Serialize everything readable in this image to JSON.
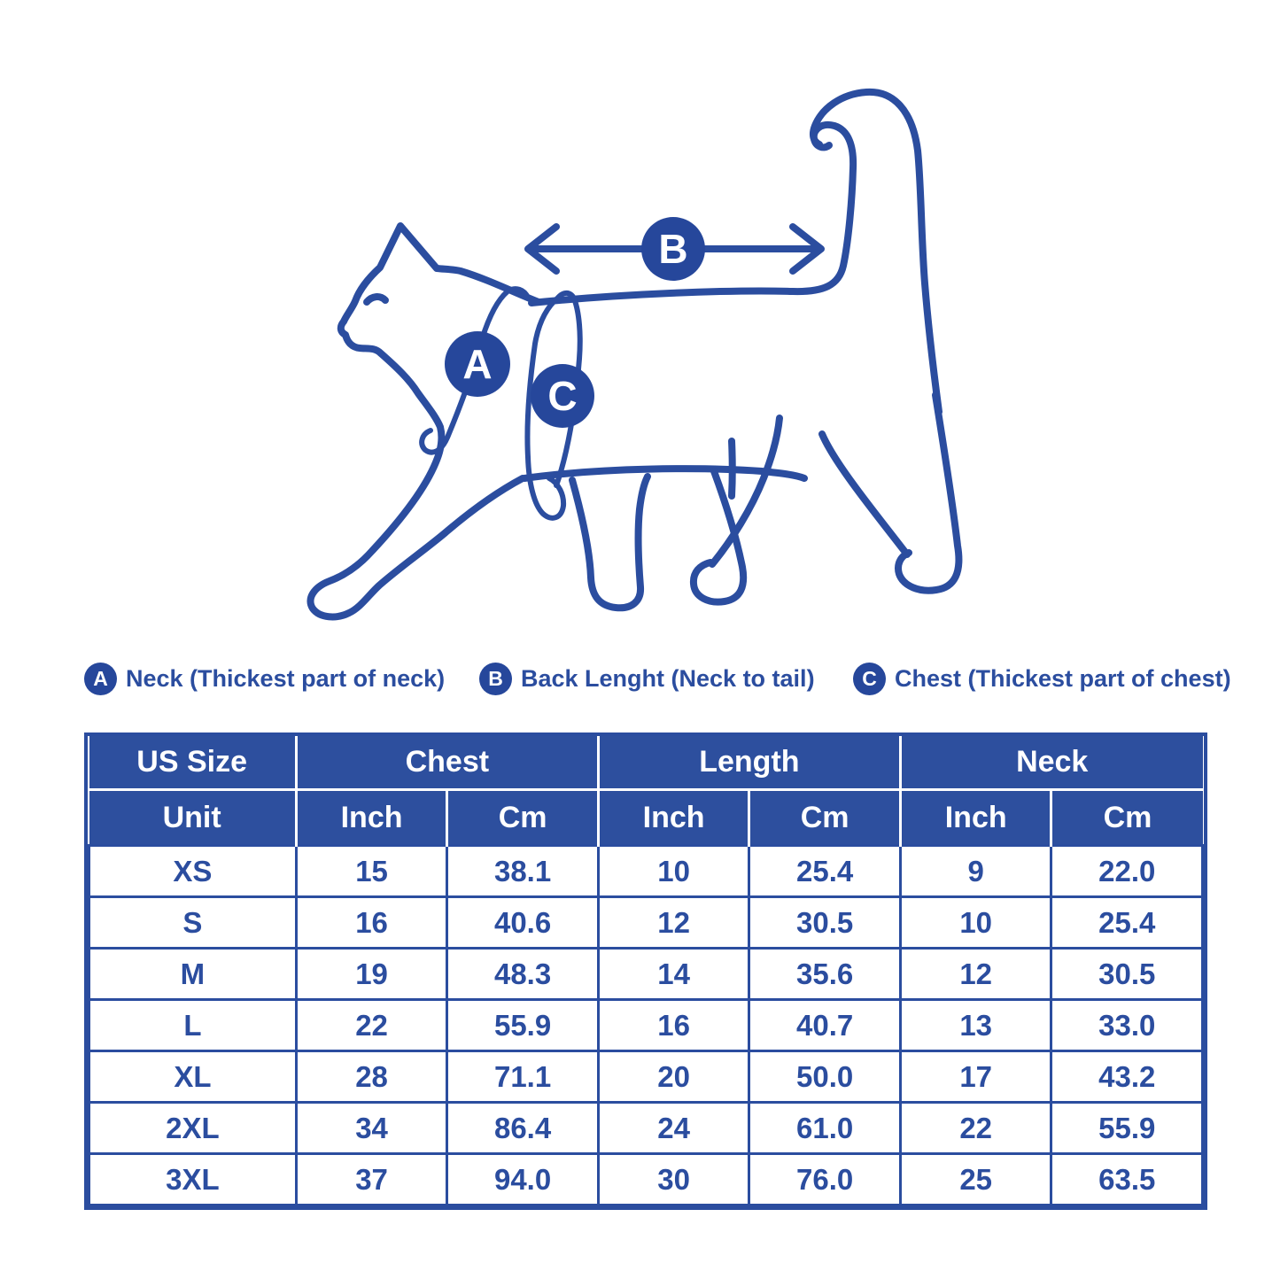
{
  "diagram": {
    "badges": {
      "a": "A",
      "b": "B",
      "c": "C"
    }
  },
  "legend": {
    "items": [
      {
        "badge": "A",
        "label": "Neck (Thickest part of neck)"
      },
      {
        "badge": "B",
        "label": "Back Lenght (Neck to tail)"
      },
      {
        "badge": "C",
        "label": "Chest (Thickest part of chest)"
      }
    ]
  },
  "table": {
    "group_headers": [
      "US Size",
      "Chest",
      "Length",
      "Neck"
    ],
    "unit_row": [
      "Unit",
      "Inch",
      "Cm",
      "Inch",
      "Cm",
      "Inch",
      "Cm"
    ],
    "rows": [
      [
        "XS",
        "15",
        "38.1",
        "10",
        "25.4",
        "9",
        "22.0"
      ],
      [
        "S",
        "16",
        "40.6",
        "12",
        "30.5",
        "10",
        "25.4"
      ],
      [
        "M",
        "19",
        "48.3",
        "14",
        "35.6",
        "12",
        "30.5"
      ],
      [
        "L",
        "22",
        "55.9",
        "16",
        "40.7",
        "13",
        "33.0"
      ],
      [
        "XL",
        "28",
        "71.1",
        "20",
        "50.0",
        "17",
        "43.2"
      ],
      [
        "2XL",
        "34",
        "86.4",
        "24",
        "61.0",
        "22",
        "55.9"
      ],
      [
        "3XL",
        "37",
        "94.0",
        "30",
        "76.0",
        "25",
        "63.5"
      ]
    ]
  },
  "chart_data": {
    "type": "table",
    "columns": [
      "US Size",
      "Chest Inch",
      "Chest Cm",
      "Length Inch",
      "Length Cm",
      "Neck Inch",
      "Neck Cm"
    ],
    "rows": [
      [
        "XS",
        15,
        38.1,
        10,
        25.4,
        9,
        22.0
      ],
      [
        "S",
        16,
        40.6,
        12,
        30.5,
        10,
        25.4
      ],
      [
        "M",
        19,
        48.3,
        14,
        35.6,
        12,
        30.5
      ],
      [
        "L",
        22,
        55.9,
        16,
        40.7,
        13,
        33.0
      ],
      [
        "XL",
        28,
        71.1,
        20,
        50.0,
        17,
        43.2
      ],
      [
        "2XL",
        34,
        86.4,
        24,
        61.0,
        22,
        55.9
      ],
      [
        "3XL",
        37,
        94.0,
        30,
        76.0,
        25,
        63.5
      ]
    ]
  },
  "colors": {
    "line": "#2b4d9f",
    "badge_fill": "#26479b",
    "header_bg": "#2d4f9e",
    "table_border": "#2b4d9f",
    "text": "#2b4d9f",
    "background": "#ffffff"
  }
}
